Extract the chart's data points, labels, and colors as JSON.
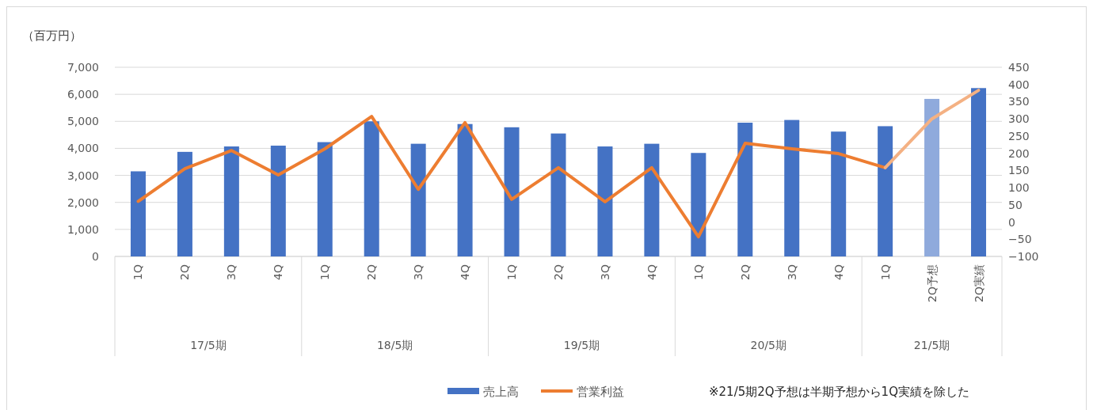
{
  "chart_data": {
    "type": "bar",
    "ylabel": "（百万円）",
    "categories": [
      "1Q",
      "2Q",
      "3Q",
      "4Q",
      "1Q",
      "2Q",
      "3Q",
      "4Q",
      "1Q",
      "2Q",
      "3Q",
      "4Q",
      "1Q",
      "2Q",
      "3Q",
      "4Q",
      "1Q",
      "2Q予想",
      "2Q実績"
    ],
    "series": [
      {
        "name": "売上高",
        "color": "#4472c4",
        "colors": [
          "#4472c4",
          "#4472c4",
          "#4472c4",
          "#4472c4",
          "#4472c4",
          "#4472c4",
          "#4472c4",
          "#4472c4",
          "#4472c4",
          "#4472c4",
          "#4472c4",
          "#4472c4",
          "#4472c4",
          "#4472c4",
          "#4472c4",
          "#4472c4",
          "#4472c4",
          "#8faadc",
          "#4472c4"
        ],
        "values": [
          3150,
          3870,
          4070,
          4100,
          4230,
          5000,
          4170,
          4900,
          4780,
          4550,
          4070,
          4170,
          3830,
          4950,
          5050,
          4620,
          4820,
          5830,
          6230
        ]
      },
      {
        "name": "営業利益",
        "type": "line",
        "axis": "y2",
        "color": "#ed7d31",
        "values": [
          60,
          155,
          208,
          137,
          213,
          307,
          95,
          289,
          66,
          158,
          59,
          158,
          -43,
          229,
          213,
          199,
          158,
          null,
          null
        ]
      },
      {
        "type": "line",
        "axis": "y2",
        "color": "#f4b183",
        "values": [
          null,
          null,
          null,
          null,
          null,
          null,
          null,
          null,
          null,
          null,
          null,
          null,
          null,
          null,
          null,
          null,
          158,
          300,
          383
        ]
      }
    ],
    "ylim": [
      0,
      7000
    ],
    "yticks": [
      0,
      {
        "value": 1000,
        "label": "1,000"
      },
      {
        "value": 2000,
        "label": "2,000"
      },
      {
        "value": 3000,
        "label": "3,000"
      },
      {
        "value": 4000,
        "label": "4,000"
      },
      {
        "value": 5000,
        "label": "5,000"
      },
      {
        "value": 6000,
        "label": "6,000"
      },
      {
        "value": 7000,
        "label": "7,000"
      }
    ],
    "y2lim": [
      -100,
      450
    ],
    "y2ticks": [
      {
        "value": -100,
        "label": "−100"
      },
      {
        "value": -50,
        "label": "−50"
      },
      0,
      50,
      100,
      150,
      200,
      250,
      300,
      350,
      400,
      450
    ],
    "grid": "y",
    "legend": "bottom",
    "annotations": [
      "17/5期",
      "18/5期",
      "19/5期",
      "20/5期",
      "21/5期",
      "※21/5期2Q予想は半期予想から1Q実績を除した"
    ]
  }
}
